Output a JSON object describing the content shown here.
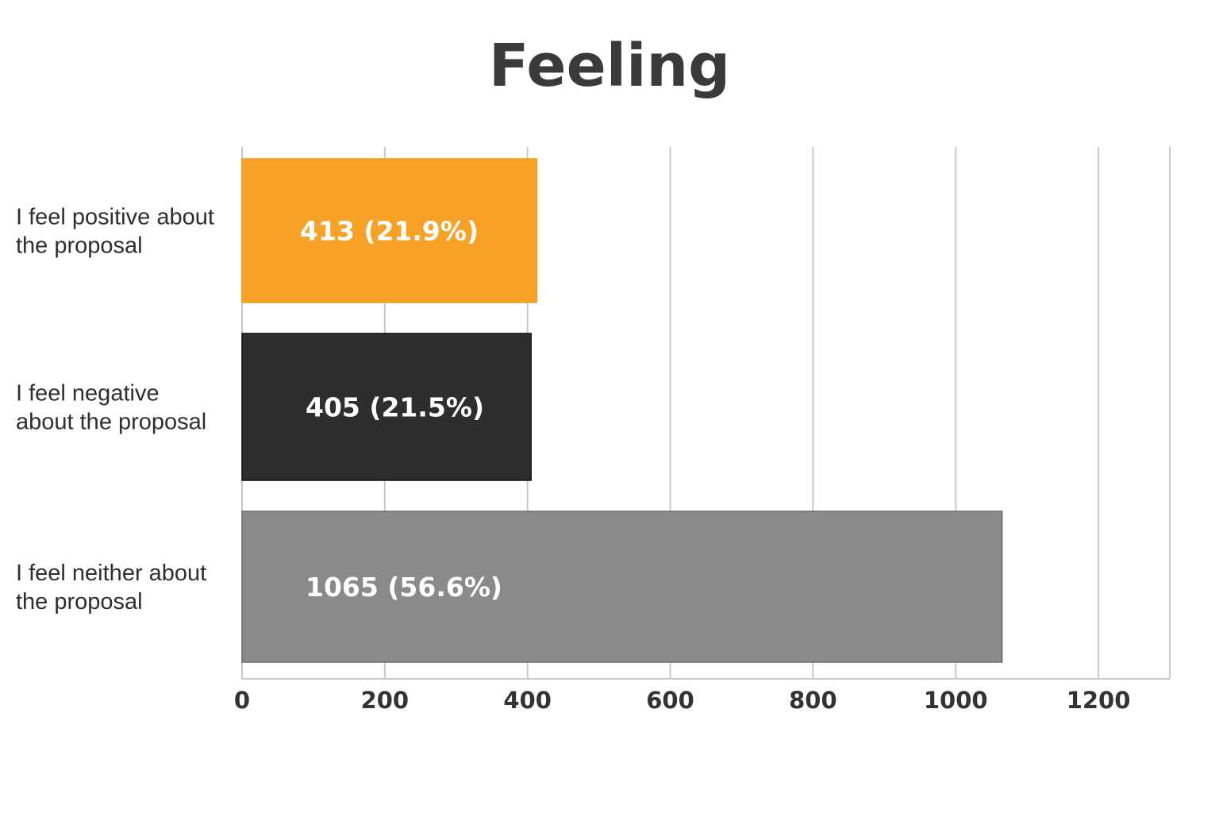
{
  "chart_data": {
    "type": "bar",
    "orientation": "horizontal",
    "title": "Feeling",
    "categories": [
      [
        "I feel positive about",
        "the proposal"
      ],
      [
        "I feel negative",
        "about the proposal"
      ],
      [
        "I feel neither about",
        "the proposal"
      ]
    ],
    "values": [
      413,
      405,
      1065
    ],
    "data_labels": [
      "413 (21.9%)",
      "405 (21.5%)",
      "1065 (56.6%)"
    ],
    "colors": [
      "#F7A127",
      "#2E2E2E",
      "#8A8A8A"
    ],
    "xlim": [
      0,
      1300
    ],
    "xticks": [
      0,
      200,
      400,
      600,
      800,
      1000,
      1200
    ],
    "xtick_labels": [
      "0",
      "200",
      "400",
      "600",
      "800",
      "1000",
      "1200"
    ],
    "grid": true,
    "xlabel": "",
    "ylabel": ""
  }
}
